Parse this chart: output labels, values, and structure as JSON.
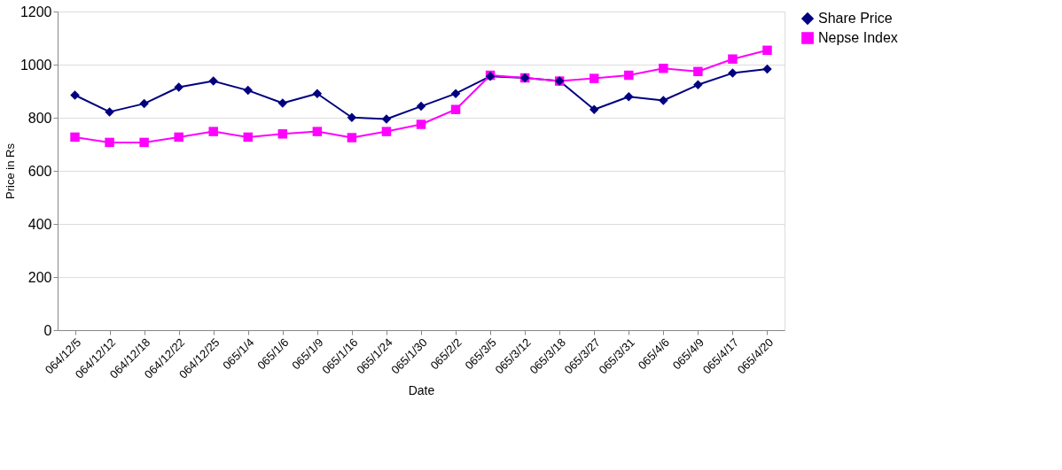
{
  "chart_data": {
    "type": "line",
    "xlabel": "Date",
    "ylabel": "Price in Rs",
    "categories": [
      "064/12/5",
      "064/12/12",
      "064/12/18",
      "064/12/22",
      "064/12/25",
      "065/1/4",
      "065/1/6",
      "065/1/9",
      "065/1/16",
      "065/1/24",
      "065/1/30",
      "065/2/2",
      "065/3/5",
      "065/3/12",
      "065/3/18",
      "065/3/27",
      "065/3/31",
      "065/4/6",
      "065/4/9",
      "065/4/17",
      "065/4/20"
    ],
    "series": [
      {
        "name": "Share Price",
        "color": "#000080",
        "marker": "diamond",
        "values": [
          885,
          822,
          853,
          915,
          938,
          903,
          855,
          891,
          801,
          795,
          843,
          891,
          956,
          950,
          938,
          831,
          879,
          865,
          924,
          968,
          983
        ]
      },
      {
        "name": "Nepse Index",
        "color": "#ff00ff",
        "marker": "square",
        "values": [
          727,
          707,
          707,
          727,
          748,
          727,
          739,
          748,
          725,
          748,
          775,
          831,
          960,
          950,
          938,
          948,
          960,
          986,
          974,
          1021,
          1054
        ]
      }
    ],
    "ylim": [
      0,
      1200
    ],
    "yticks": [
      0,
      200,
      400,
      600,
      800,
      1000,
      1200
    ],
    "grid": "y",
    "legend": "right"
  }
}
